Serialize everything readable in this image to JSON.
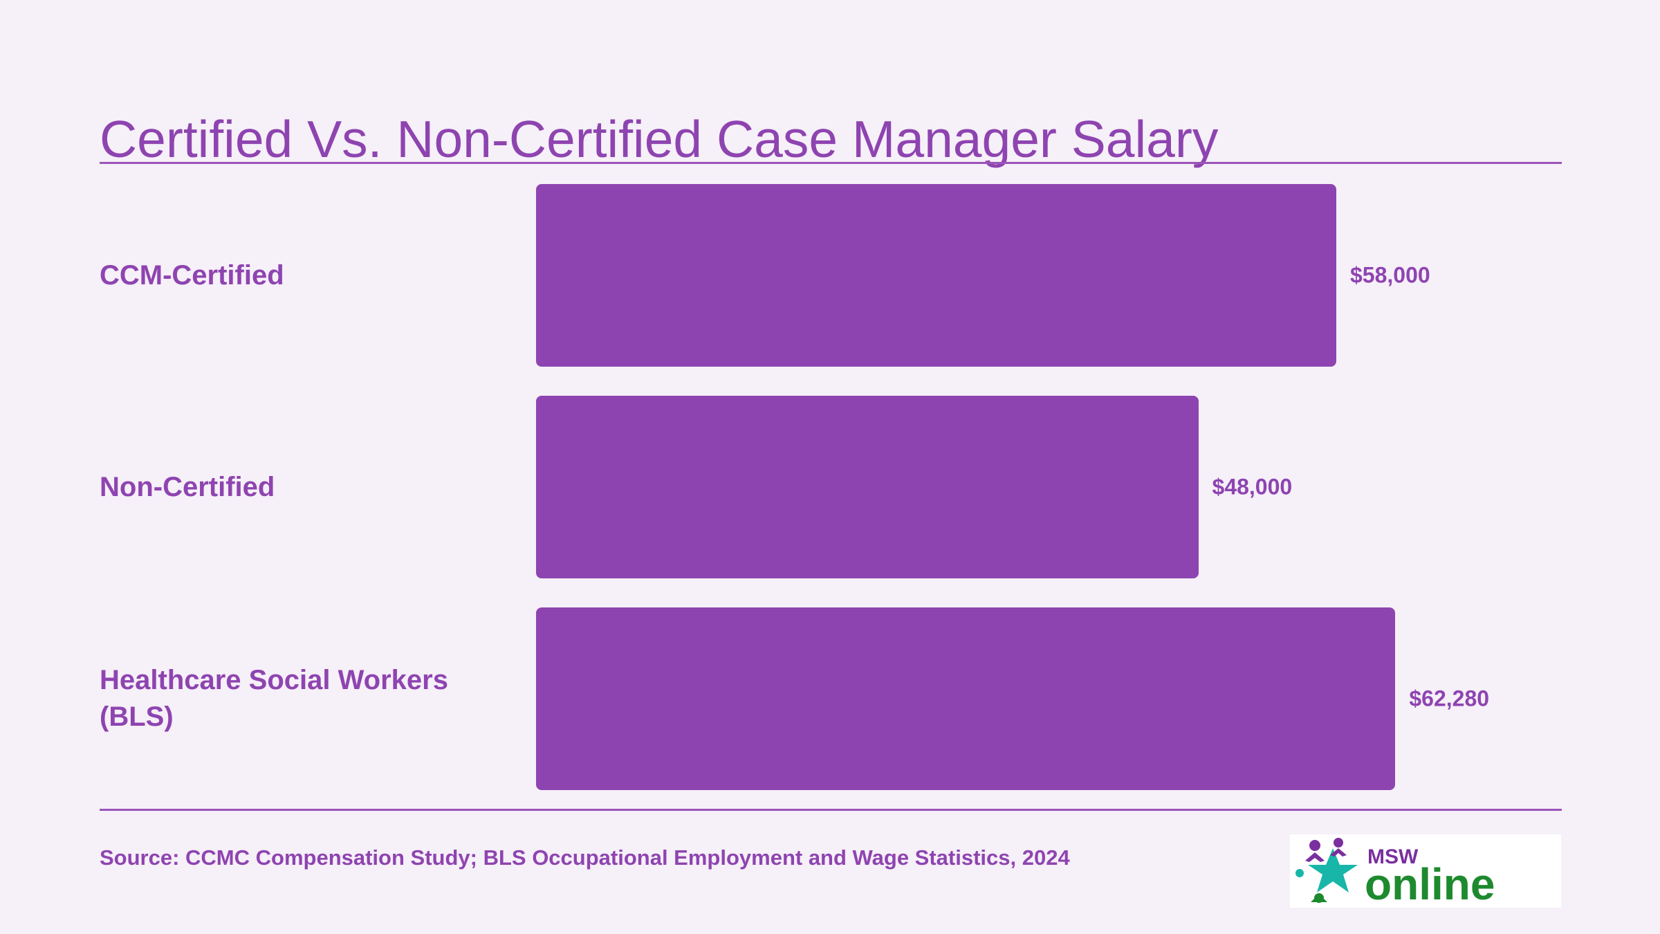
{
  "chart_data": {
    "type": "bar",
    "orientation": "horizontal",
    "title": "Certified Vs. Non-Certified Case Manager Salary",
    "categories": [
      "CCM-Certified",
      "Non-Certified",
      "Healthcare Social Workers (BLS)"
    ],
    "values": [
      58000,
      48000,
      62280
    ],
    "value_labels": [
      "$58,000",
      "$48,000",
      "$62,280"
    ],
    "xlabel": "",
    "ylabel": "",
    "grid": false,
    "legend": "none"
  },
  "source": "Source: CCMC Compensation Study; BLS Occupational Employment and Wage Statistics, 2024",
  "logo": {
    "text_top": "MSW",
    "text_main": "online"
  },
  "colors": {
    "bar": "#8e44b0",
    "text": "#8e44b0",
    "background": "#f6f0f8",
    "logo_green": "#1e8a2e",
    "logo_purple": "#7a2f9e",
    "logo_teal": "#18b6a8"
  }
}
